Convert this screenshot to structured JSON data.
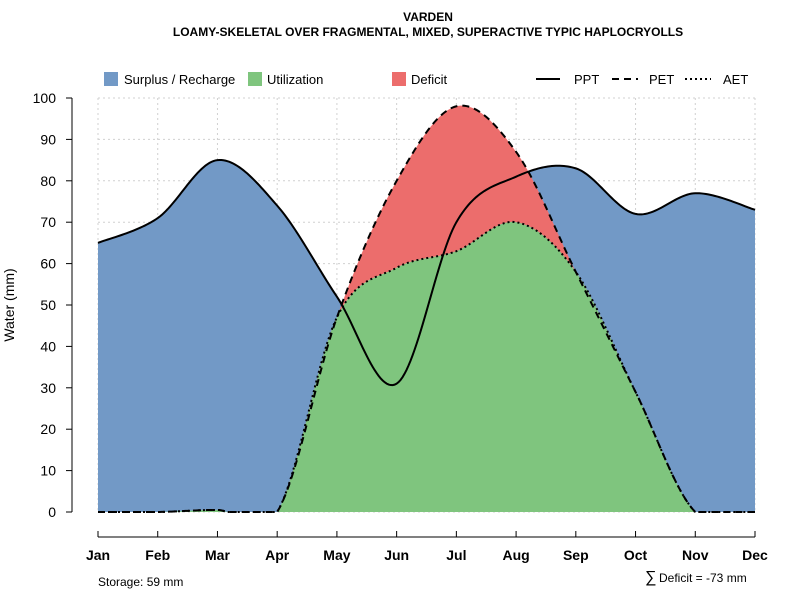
{
  "chart_data": {
    "type": "area",
    "title": "VARDEN",
    "subtitle": "LOAMY-SKELETAL OVER FRAGMENTAL, MIXED, SUPERACTIVE TYPIC HAPLOCRYOLLS",
    "xlabel": "",
    "ylabel": "Water (mm)",
    "categories": [
      "Jan",
      "Feb",
      "Mar",
      "Apr",
      "May",
      "Jun",
      "Jul",
      "Aug",
      "Sep",
      "Oct",
      "Nov",
      "Dec"
    ],
    "ylim": [
      0,
      100
    ],
    "yticks": [
      0,
      10,
      20,
      30,
      40,
      50,
      60,
      70,
      80,
      90,
      100
    ],
    "grid": true,
    "series": [
      {
        "name": "PPT",
        "style": "solid",
        "values": [
          65,
          71,
          85,
          74,
          52,
          31,
          70,
          81,
          83,
          72,
          77,
          73
        ]
      },
      {
        "name": "PET",
        "style": "dashed",
        "values": [
          0,
          0,
          0.5,
          0,
          47,
          80,
          98,
          87,
          58,
          29,
          0,
          0
        ]
      },
      {
        "name": "AET",
        "style": "dotted",
        "values": [
          0,
          0,
          0.5,
          0,
          47,
          59,
          63,
          70,
          58,
          29,
          0,
          0
        ]
      }
    ],
    "areas": [
      {
        "name": "Surplus / Recharge",
        "color": "#7299C6"
      },
      {
        "name": "Utilization",
        "color": "#7FC57E"
      },
      {
        "name": "Deficit",
        "color": "#EC6D6C"
      }
    ],
    "legend_position": "top",
    "annotations": {
      "storage": "Storage: 59 mm",
      "deficit_symbol": "∑",
      "deficit": "Deficit = -73 mm"
    }
  }
}
